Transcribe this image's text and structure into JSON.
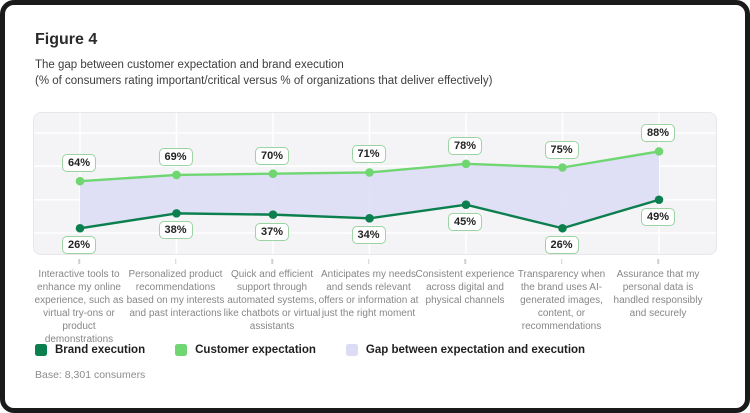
{
  "figure": {
    "title": "Figure 4",
    "subtitle_line1": "The gap between customer expectation and brand execution",
    "subtitle_line2": "(% of consumers rating important/critical versus % of organizations that deliver effectively)",
    "base_note": "Base: 8,301 consumers"
  },
  "colors": {
    "gridline": "#ffffff",
    "plot_background": "#f4f4f6",
    "chip_border": "#9cd3a3",
    "tick": "#cfcfcf"
  },
  "chart_data": {
    "type": "line",
    "title": "The gap between customer expectation and brand execution",
    "subtitle": "(% of consumers rating important/critical versus % of organizations that deliver effectively)",
    "categories": [
      "Interactive tools to enhance my online experience, such as virtual try-ons or product demonstrations",
      "Personalized product recommendations based on my interests and past interactions",
      "Quick and efficient support through automated systems, like chatbots or virtual assistants",
      "Anticipates my needs and sends relevant offers or information at just the right moment",
      "Consistent experience across digital and physical channels",
      "Transparency when the brand uses AI-generated images, content, or recommendations",
      "Assurance that my personal data is handled responsibly and securely"
    ],
    "series": [
      {
        "name": "Customer expectation",
        "values": [
          64,
          69,
          70,
          71,
          78,
          75,
          88
        ],
        "color": "#6fd672",
        "label_position": "above"
      },
      {
        "name": "Brand execution",
        "values": [
          26,
          38,
          37,
          34,
          45,
          26,
          49
        ],
        "color": "#0c7f4f",
        "label_position": "below"
      }
    ],
    "gap": {
      "legend_label": "Gap between expectation and execution",
      "fill": "#dcdcf5"
    },
    "value_suffix": "%",
    "ylim": [
      0,
      100
    ],
    "grid": true,
    "legend_position": "bottom-left",
    "base_note": "Base: 8,301 consumers"
  }
}
